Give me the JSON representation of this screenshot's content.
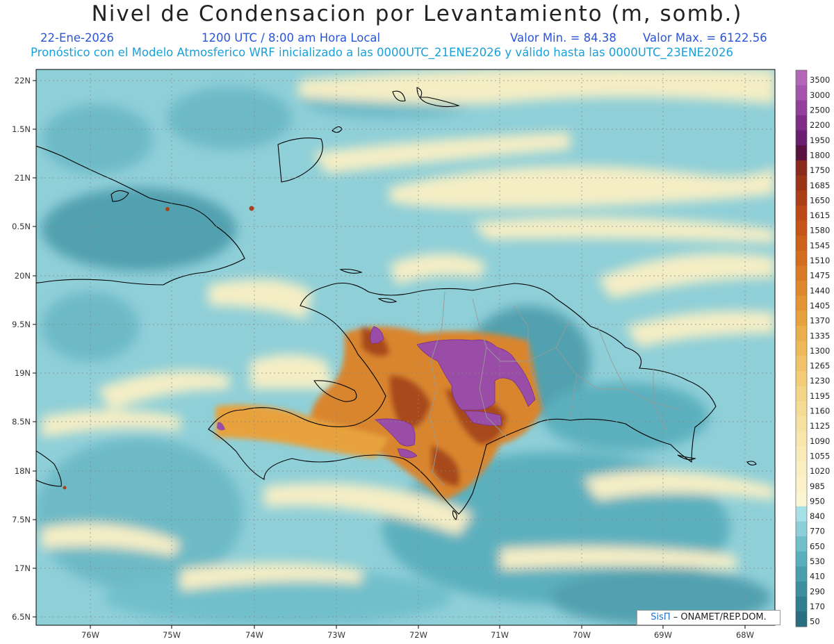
{
  "header": {
    "title": "Nivel de Condensacion por Levantamiento (m, somb.)",
    "date": "22-Ene-2026",
    "time": "1200 UTC / 8:00 am Hora Local",
    "min": "Valor Min. = 84.38",
    "max": "Valor Max. = 6122.56",
    "subtitle": "Pronóstico con el Modelo Atmosferico WRF inicializado a las 0000UTC_21ENE2026 y válido hasta las  0000UTC_23ENE2026"
  },
  "axes": {
    "lon_labels": [
      "76W",
      "75W",
      "74W",
      "73W",
      "72W",
      "71W",
      "70W",
      "69W",
      "68W"
    ],
    "lat_labels": [
      "22N",
      "1.5N",
      "21N",
      "0.5N",
      "20N",
      "9.5N",
      "19N",
      "8.5N",
      "18N",
      "7.5N",
      "17N",
      "6.5N"
    ]
  },
  "colorbar": {
    "labels": [
      "3500",
      "3000",
      "2500",
      "2200",
      "1950",
      "1800",
      "1750",
      "1685",
      "1650",
      "1615",
      "1580",
      "1545",
      "1510",
      "1475",
      "1440",
      "1405",
      "1370",
      "1335",
      "1300",
      "1265",
      "1230",
      "1195",
      "1160",
      "1125",
      "1090",
      "1055",
      "1020",
      "985",
      "950",
      "840",
      "770",
      "650",
      "530",
      "410",
      "290",
      "170",
      "50"
    ],
    "colors": [
      "#b466b8",
      "#a655ad",
      "#933f9c",
      "#7f2d87",
      "#6a1f70",
      "#5a1240",
      "#8a2a1c",
      "#9c3418",
      "#ad3f16",
      "#bb4a16",
      "#c55517",
      "#cd611a",
      "#d46d1e",
      "#da7a24",
      "#df872b",
      "#e39534",
      "#e7a23e",
      "#eaae4b",
      "#edb959",
      "#f0c368",
      "#f2cc77",
      "#f4d487",
      "#f6db95",
      "#f7e1a1",
      "#f8e6ac",
      "#f9ebb7",
      "#faefc1",
      "#fbf2c9",
      "#fcf5d1",
      "#a8e0e8",
      "#8ccfd9",
      "#70bfcb",
      "#5aafbd",
      "#4a9fae",
      "#3d8f9f",
      "#307f90",
      "#276f81"
    ]
  },
  "credit": {
    "logo": "SisΠ",
    "text": "– ONAMET/REP.DOM."
  }
}
